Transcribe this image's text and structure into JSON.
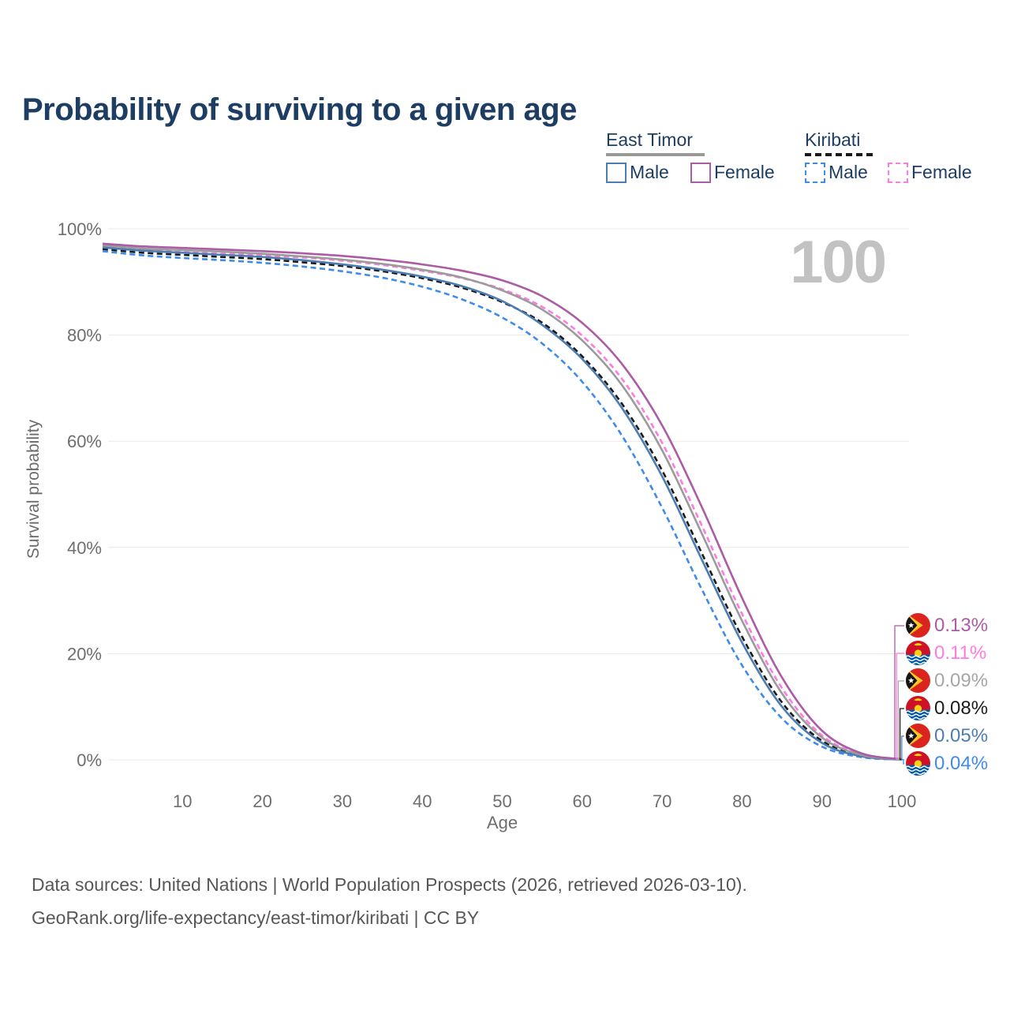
{
  "title": "Probability of surviving to a given age",
  "legend": {
    "groups": [
      {
        "title": "East Timor",
        "line_style": "solid",
        "underline_color": "#999999",
        "items": [
          {
            "label": "Male",
            "color": "#4C7DB2"
          },
          {
            "label": "Female",
            "color": "#AC5BA5"
          }
        ]
      },
      {
        "title": "Kiribati",
        "line_style": "dashed",
        "underline_color": "#191919",
        "items": [
          {
            "label": "Male",
            "color": "#3F8BE9"
          },
          {
            "label": "Female",
            "color": "#FF7BDF"
          }
        ]
      }
    ]
  },
  "chart_data": {
    "type": "line",
    "title": "Probability of surviving to a given age",
    "xlabel": "Age",
    "ylabel": "Survival probability",
    "xlim": [
      0,
      100
    ],
    "ylim": [
      0,
      100
    ],
    "x_ticks": [
      10,
      20,
      30,
      40,
      50,
      60,
      70,
      80,
      90,
      100
    ],
    "y_ticks": [
      "0%",
      "20%",
      "40%",
      "60%",
      "80%",
      "100%"
    ],
    "grid": "horizontal",
    "age_indicator": "100",
    "ages": [
      0,
      5,
      10,
      15,
      20,
      25,
      30,
      35,
      40,
      45,
      50,
      55,
      60,
      65,
      70,
      75,
      80,
      85,
      90,
      95,
      100
    ],
    "series": [
      {
        "name": "East Timor Female",
        "color": "#AC5BA5",
        "dash": "solid",
        "values": [
          97.2,
          96.7,
          96.4,
          96.1,
          95.8,
          95.4,
          94.9,
          94.2,
          93.3,
          92.1,
          90.3,
          87.3,
          82.3,
          74.5,
          63.0,
          47.5,
          30.5,
          15.5,
          5.5,
          1.2,
          0.13
        ]
      },
      {
        "name": "Kiribati Female",
        "color": "#FF7BDF",
        "dash": "dashed",
        "values": [
          96.6,
          96.0,
          95.6,
          95.3,
          95.0,
          94.6,
          94.0,
          93.2,
          92.1,
          90.7,
          88.6,
          85.3,
          79.9,
          71.7,
          59.7,
          44.0,
          27.5,
          13.5,
          4.6,
          1.0,
          0.11
        ]
      },
      {
        "name": "East Timor",
        "color": "#9B9B9B",
        "dash": "solid",
        "values": [
          96.9,
          96.3,
          96.0,
          95.7,
          95.3,
          94.8,
          94.2,
          93.4,
          92.3,
          90.8,
          88.4,
          84.8,
          79.0,
          70.5,
          58.3,
          42.5,
          26.2,
          12.5,
          4.2,
          0.9,
          0.09
        ]
      },
      {
        "name": "Kiribati",
        "color": "#1A1A1A",
        "dash": "dashed",
        "values": [
          96.2,
          95.5,
          95.1,
          94.7,
          94.3,
          93.7,
          93.0,
          92.0,
          90.7,
          88.9,
          86.2,
          82.3,
          76.0,
          67.0,
          54.5,
          38.8,
          23.2,
          10.8,
          3.6,
          0.75,
          0.08
        ]
      },
      {
        "name": "East Timor Male",
        "color": "#4C7DB2",
        "dash": "solid",
        "values": [
          96.5,
          95.9,
          95.5,
          95.1,
          94.7,
          94.1,
          93.3,
          92.3,
          91.0,
          89.2,
          86.4,
          81.9,
          75.5,
          66.2,
          53.4,
          37.6,
          22.1,
          10.0,
          3.2,
          0.65,
          0.05
        ]
      },
      {
        "name": "Kiribati Male",
        "color": "#3F8BE9",
        "dash": "dashed",
        "values": [
          95.8,
          95.0,
          94.5,
          94.1,
          93.6,
          92.9,
          92.0,
          90.8,
          89.1,
          86.7,
          83.3,
          78.4,
          71.2,
          61.0,
          47.5,
          32.0,
          17.8,
          7.8,
          2.5,
          0.5,
          0.04
        ]
      }
    ],
    "end_labels": [
      {
        "series": "East Timor Female",
        "flag": "east-timor",
        "value": "0.13%",
        "color": "#AC5BA5"
      },
      {
        "series": "Kiribati Female",
        "flag": "kiribati",
        "value": "0.11%",
        "color": "#FF7BDF"
      },
      {
        "series": "East Timor",
        "flag": "east-timor",
        "value": "0.09%",
        "color": "#A6A6A6"
      },
      {
        "series": "Kiribati",
        "flag": "kiribati",
        "value": "0.08%",
        "color": "#1A1A1A"
      },
      {
        "series": "East Timor Male",
        "flag": "east-timor",
        "value": "0.05%",
        "color": "#4C7DB2"
      },
      {
        "series": "Kiribati Male",
        "flag": "kiribati",
        "value": "0.04%",
        "color": "#3F8BE9"
      }
    ]
  },
  "footer": {
    "line1": "Data sources: United Nations | World Population Prospects (2026, retrieved 2026-03-10).",
    "line2": "GeoRank.org/life-expectancy/east-timor/kiribati | CC BY"
  }
}
